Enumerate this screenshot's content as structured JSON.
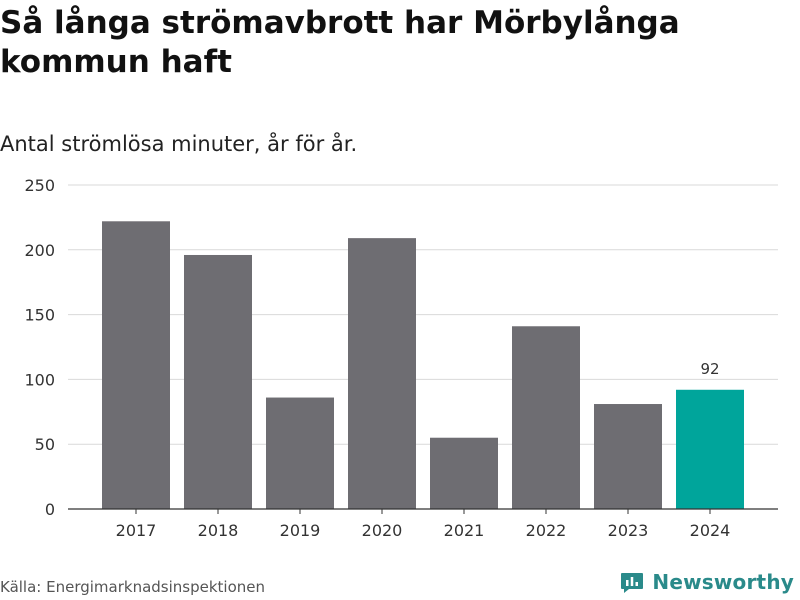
{
  "header": {
    "title": "Så långa strömavbrott har Mörbylånga kommun haft",
    "subtitle": "Antal strömlösa minuter, år för år."
  },
  "footer": {
    "source": "Källa: Energimarknadsinspektionen",
    "brand": "Newsworthy",
    "brand_icon": "newsworthy-logo-icon"
  },
  "colors": {
    "bar": "#6e6d72",
    "highlight": "#00a59b",
    "grid": "#d9d9d9",
    "axis": "#333333",
    "brand": "#2a8a8a"
  },
  "chart_data": {
    "type": "bar",
    "title": "Så långa strömavbrott har Mörbylånga kommun haft",
    "subtitle": "Antal strömlösa minuter, år för år.",
    "xlabel": "",
    "ylabel": "",
    "categories": [
      "2017",
      "2018",
      "2019",
      "2020",
      "2021",
      "2022",
      "2023",
      "2024"
    ],
    "values": [
      222,
      196,
      86,
      209,
      55,
      141,
      81,
      92
    ],
    "highlight_index": 7,
    "data_labels": [
      {
        "index": 7,
        "text": "92"
      }
    ],
    "ylim": [
      0,
      250
    ],
    "yticks": [
      0,
      50,
      100,
      150,
      200,
      250
    ],
    "grid": true,
    "legend": "none"
  }
}
